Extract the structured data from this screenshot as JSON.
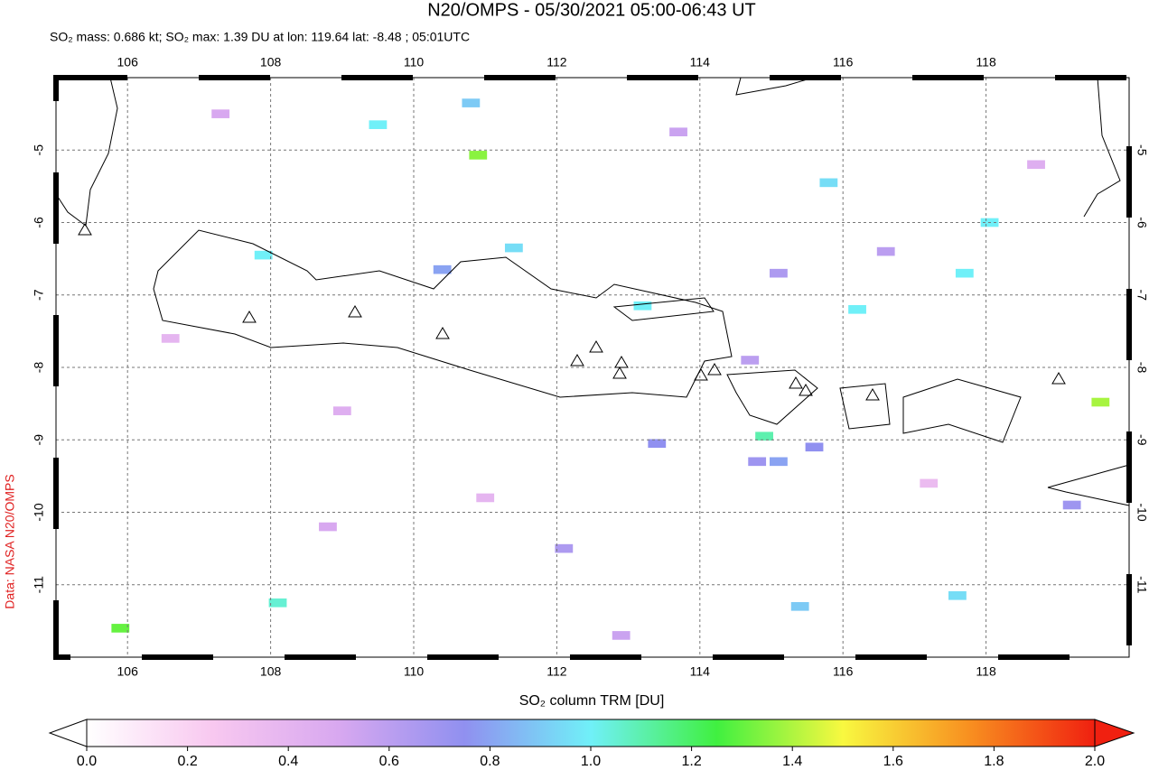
{
  "chart_data": {
    "type": "map",
    "title": "N20/OMPS - 05/30/2021 05:00-06:43 UT",
    "subtitle": "SO₂ mass: 0.686 kt; SO₂ max: 1.39 DU at lon: 119.64 lat: -8.48 ; 05:01UTC",
    "credit": "Data: NASA N20/OMPS",
    "xlim": [
      105,
      120
    ],
    "ylim": [
      -12,
      -4
    ],
    "xticks": [
      106,
      108,
      110,
      112,
      114,
      116,
      118
    ],
    "yticks": [
      -5,
      -6,
      -7,
      -8,
      -9,
      -10,
      -11
    ],
    "grid": true,
    "cells": [
      {
        "lon": 110.9,
        "lat": -5.07,
        "value": 1.35
      },
      {
        "lon": 119.6,
        "lat": -8.48,
        "value": 1.39
      },
      {
        "lon": 105.9,
        "lat": -11.6,
        "value": 1.3
      },
      {
        "lon": 114.9,
        "lat": -8.95,
        "value": 1.1
      },
      {
        "lon": 113.2,
        "lat": -7.15,
        "value": 1.0
      },
      {
        "lon": 111.4,
        "lat": -6.35,
        "value": 0.95
      },
      {
        "lon": 109.5,
        "lat": -4.65,
        "value": 1.0
      },
      {
        "lon": 107.9,
        "lat": -6.45,
        "value": 1.0
      },
      {
        "lon": 110.8,
        "lat": -4.35,
        "value": 0.9
      },
      {
        "lon": 115.4,
        "lat": -11.3,
        "value": 0.9
      },
      {
        "lon": 117.6,
        "lat": -11.15,
        "value": 0.95
      },
      {
        "lon": 116.2,
        "lat": -7.2,
        "value": 1.0
      },
      {
        "lon": 115.8,
        "lat": -5.45,
        "value": 0.95
      },
      {
        "lon": 114.8,
        "lat": -9.3,
        "value": 0.7
      },
      {
        "lon": 115.1,
        "lat": -9.3,
        "value": 0.8
      },
      {
        "lon": 115.6,
        "lat": -9.1,
        "value": 0.75
      },
      {
        "lon": 117.7,
        "lat": -6.7,
        "value": 1.0
      },
      {
        "lon": 118.05,
        "lat": -6.0,
        "value": 1.0
      },
      {
        "lon": 108.1,
        "lat": -11.25,
        "value": 1.05
      },
      {
        "lon": 110.4,
        "lat": -6.65,
        "value": 0.8
      },
      {
        "lon": 113.4,
        "lat": -9.05,
        "value": 0.75
      },
      {
        "lon": 115.1,
        "lat": -6.7,
        "value": 0.65
      },
      {
        "lon": 114.7,
        "lat": -7.9,
        "value": 0.6
      },
      {
        "lon": 112.1,
        "lat": -10.5,
        "value": 0.65
      },
      {
        "lon": 119.2,
        "lat": -9.9,
        "value": 0.7
      },
      {
        "lon": 107.3,
        "lat": -4.5,
        "value": 0.5
      },
      {
        "lon": 109.0,
        "lat": -8.6,
        "value": 0.45
      },
      {
        "lon": 111.0,
        "lat": -9.8,
        "value": 0.4
      },
      {
        "lon": 116.6,
        "lat": -6.4,
        "value": 0.6
      },
      {
        "lon": 113.7,
        "lat": -4.75,
        "value": 0.55
      },
      {
        "lon": 106.6,
        "lat": -7.6,
        "value": 0.4
      },
      {
        "lon": 117.2,
        "lat": -9.6,
        "value": 0.35
      },
      {
        "lon": 118.7,
        "lat": -5.2,
        "value": 0.45
      },
      {
        "lon": 108.8,
        "lat": -10.2,
        "value": 0.5
      },
      {
        "lon": 112.9,
        "lat": -11.7,
        "value": 0.55
      }
    ],
    "colorbar": {
      "label": "SO₂ column TRM [DU]",
      "lim": [
        0,
        2
      ],
      "ticks": [
        {
          "value": 0,
          "label": "0.0"
        },
        0.2,
        0.4,
        0.6,
        0.8,
        {
          "value": 1,
          "label": "1.0"
        },
        1.2,
        1.4,
        1.6,
        1.8,
        {
          "value": 2,
          "label": "2.0"
        }
      ],
      "colors": [
        "#ffffff",
        "#f8c8f0",
        "#d8a8f0",
        "#9090f0",
        "#70f0f8",
        "#40f040",
        "#f8f840",
        "#f89020",
        "#f02010"
      ]
    }
  }
}
